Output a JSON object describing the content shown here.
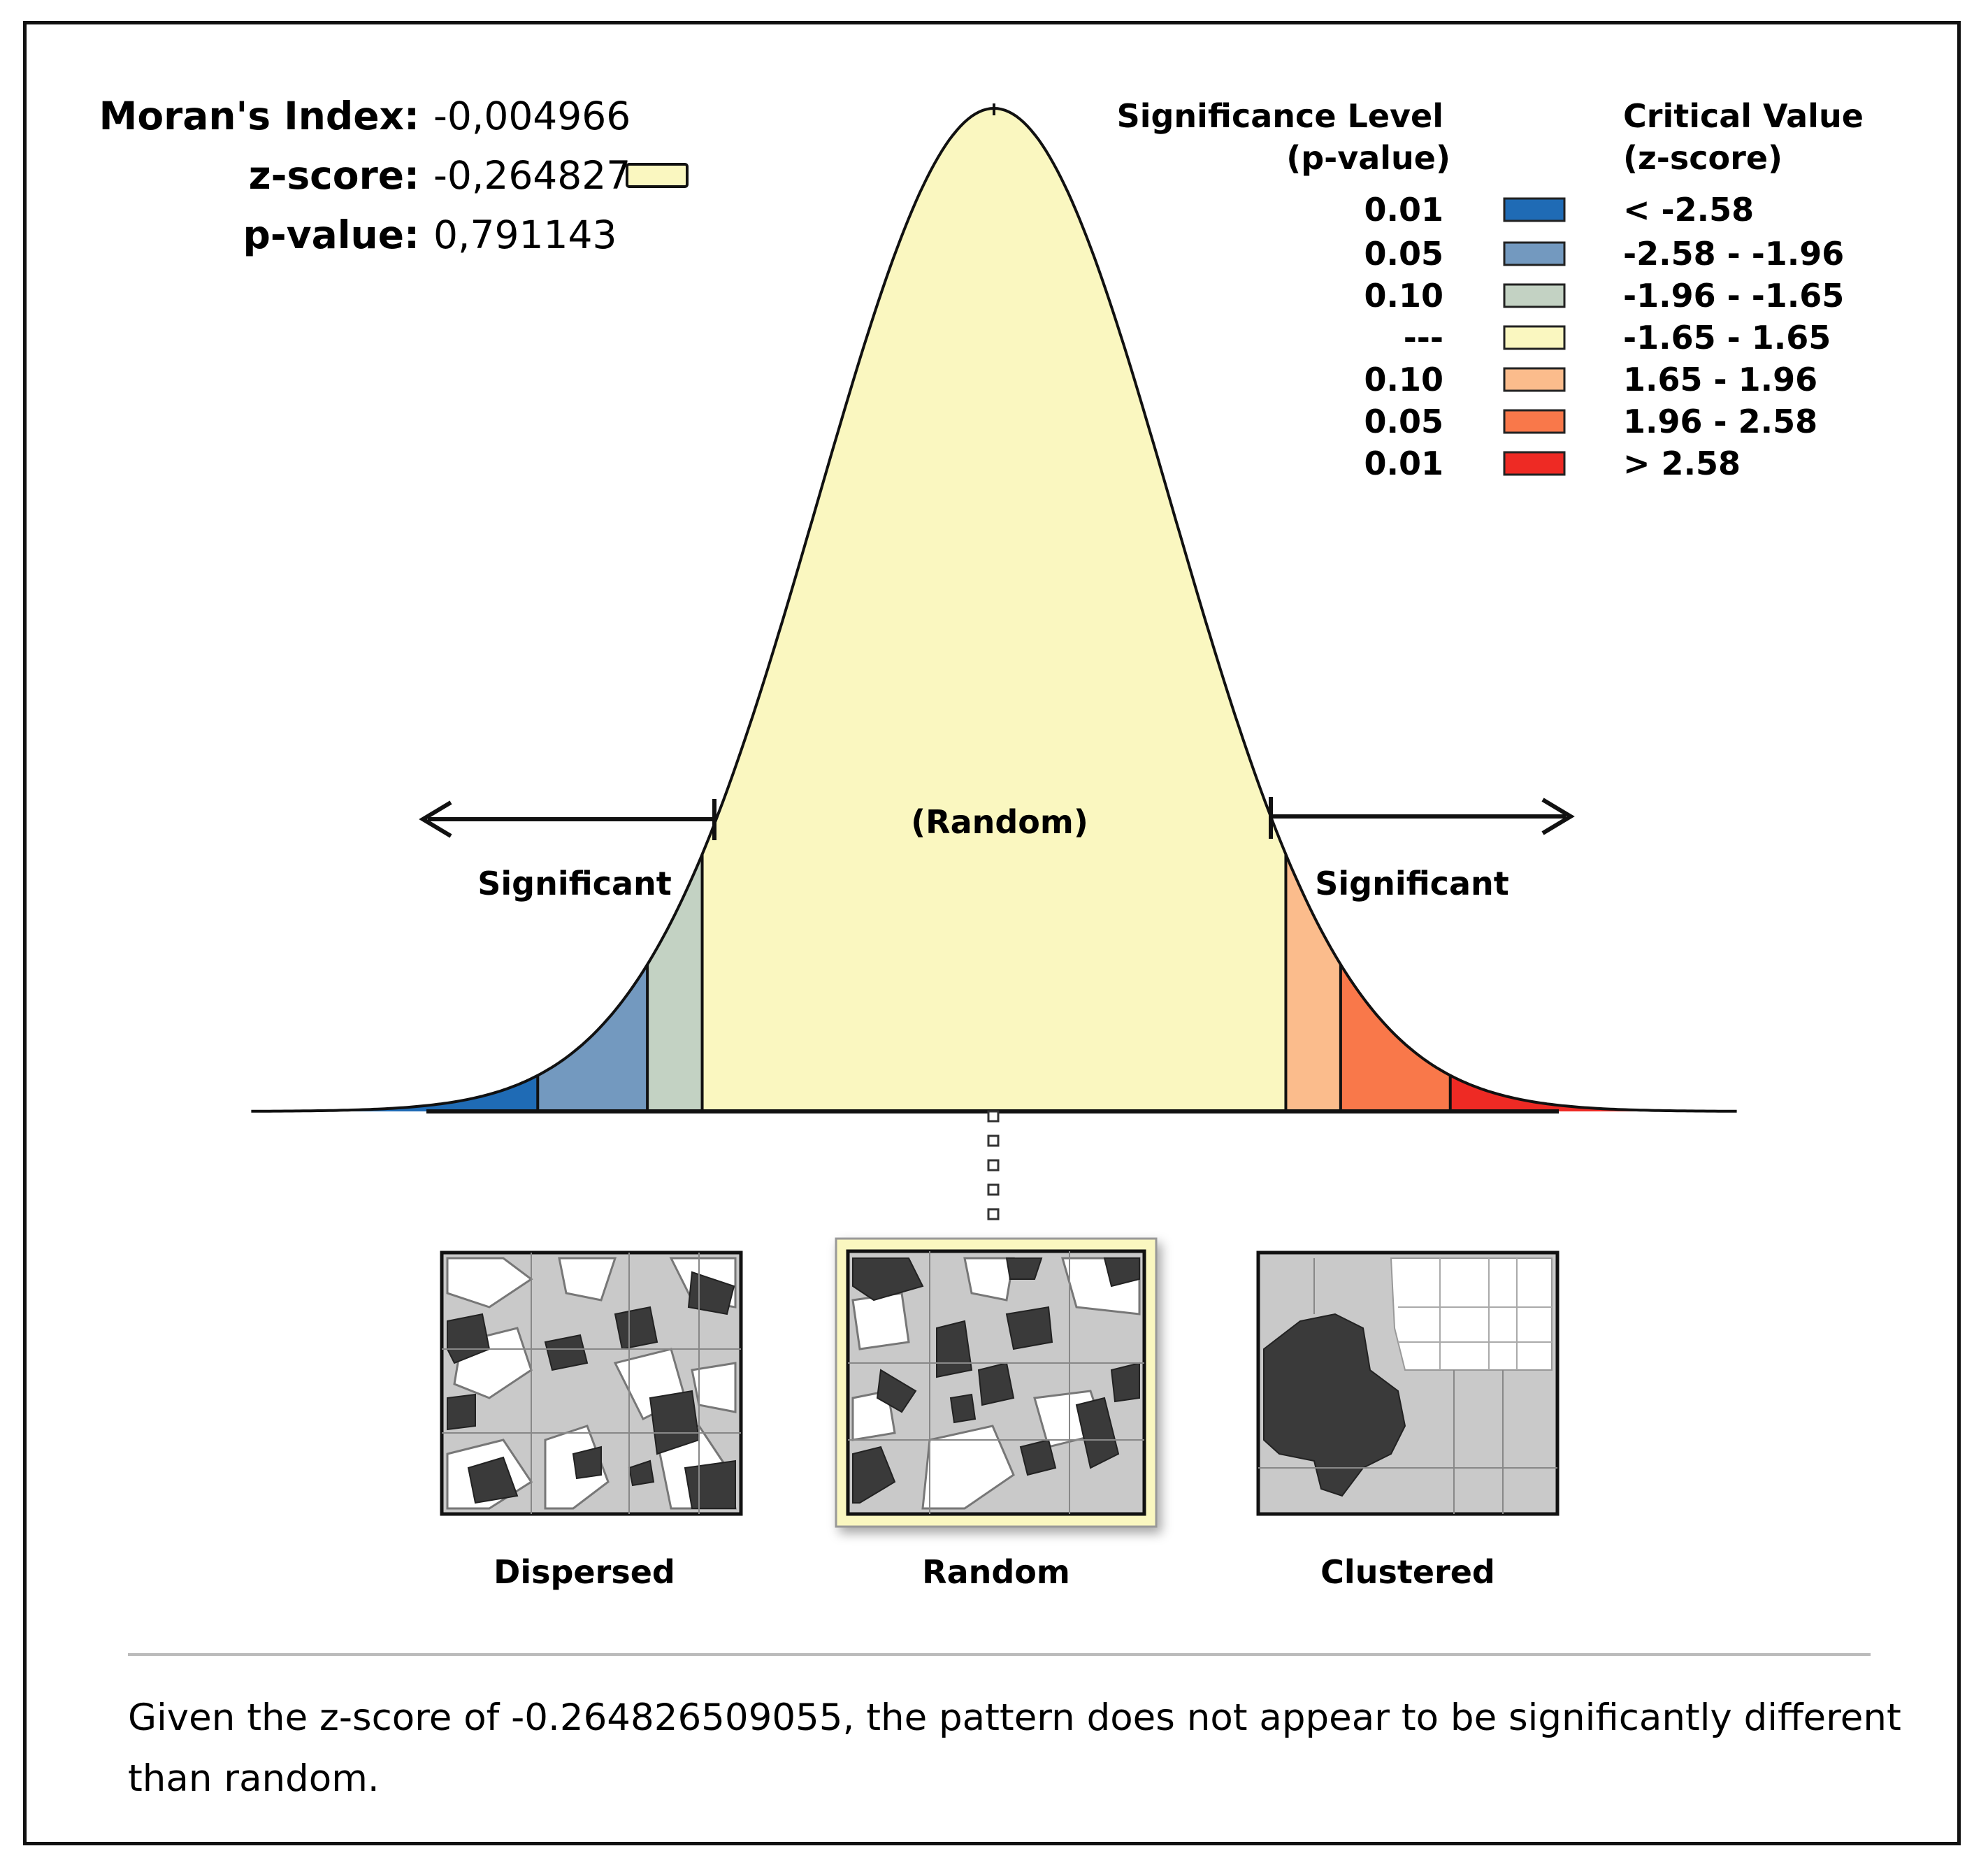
{
  "stats": {
    "moran_label": "Moran's Index:",
    "moran_value": "-0,004966",
    "z_label": "z-score:",
    "z_value": "-0,264827",
    "p_label": "p-value:",
    "p_value": "0,791143",
    "z_swatch_color": "#FAF7C0"
  },
  "legend": {
    "sig_header_1": "Significance Level",
    "sig_header_2": "(p-value)",
    "crit_header_1": "Critical Value",
    "crit_header_2": "(z-score)",
    "rows": [
      {
        "p": "0.01",
        "z": "< -2.58",
        "color": "#1F6BB5"
      },
      {
        "p": "0.05",
        "z": "-2.58 - -1.96",
        "color": "#7399BF"
      },
      {
        "p": "0.10",
        "z": "-1.96 - -1.65",
        "color": "#C3D2C3"
      },
      {
        "p": "---",
        "z": "-1.65 - 1.65",
        "color": "#FAF7C0"
      },
      {
        "p": "0.10",
        "z": "1.65 - 1.96",
        "color": "#FBBC8C"
      },
      {
        "p": "0.05",
        "z": "1.96 - 2.58",
        "color": "#F9784A"
      },
      {
        "p": "0.01",
        "z": "> 2.58",
        "color": "#EE2A24"
      }
    ]
  },
  "curve": {
    "random_label": "(Random)",
    "left_label": "Significant",
    "right_label": "Significant"
  },
  "panels": {
    "dispersed": "Dispersed",
    "random": "Random",
    "clustered": "Clustered"
  },
  "conclusion": {
    "line1": "Given the z-score of -0.264826509055, the pattern does not appear to be significantly different",
    "line2": "than random."
  }
}
